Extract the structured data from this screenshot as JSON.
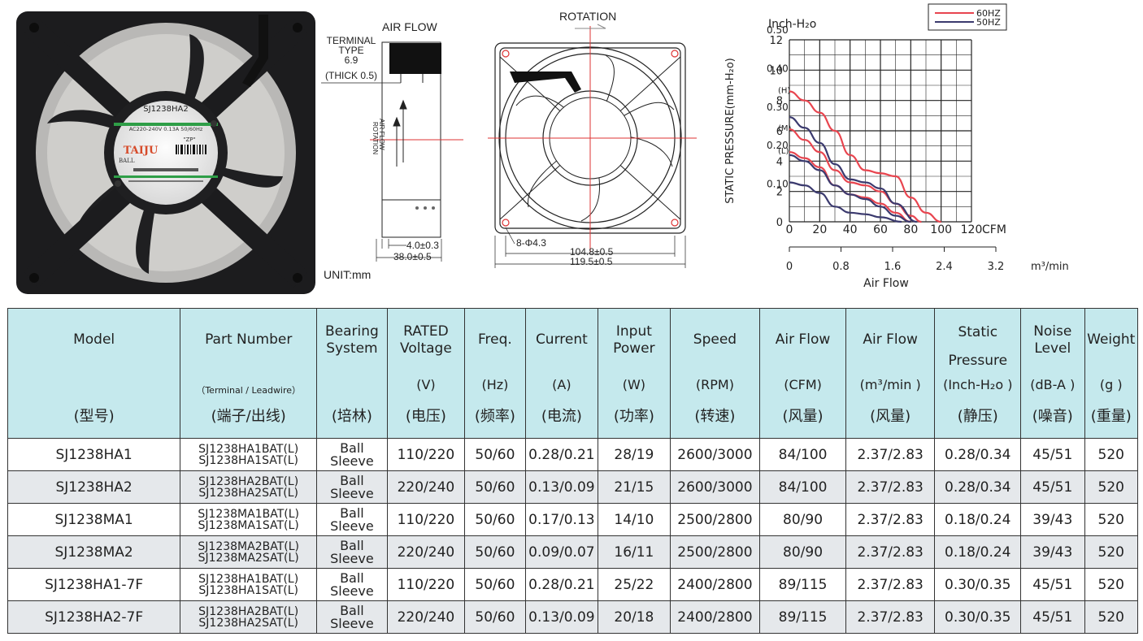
{
  "drawing": {
    "side": {
      "air_flow": "AIR FLOW",
      "terminal_type": "TERMINAL\nTYPE\n6.9",
      "terminal_1": "TERMINAL",
      "terminal_2": "TYPE",
      "terminal_3": "6.9",
      "thick": "(THICK 0.5)",
      "arrow_air": "AIR FLOW",
      "arrow_rot": "ROTATION",
      "dim_small": "4.0±0.3",
      "dim_depth": "38.0±0.5",
      "unit": "UNIT:mm"
    },
    "front": {
      "rotation": "ROTATION",
      "holes": "8-Φ4.3",
      "dim_inner": "104.8±0.5",
      "dim_outer": "119.5±0.5"
    }
  },
  "chart_data": {
    "type": "line",
    "legend": [
      "60HZ",
      "50HZ"
    ],
    "colors": {
      "60HZ": "#e8454f",
      "50HZ": "#3b3a6e"
    },
    "ylabel": "STATIC PRESSURE(mm-H₂o)",
    "y_unit_top": "Inch-H₂o",
    "y_ticks_mm": [
      "0",
      "2",
      "4",
      "6",
      "8",
      "10",
      "12"
    ],
    "y_ticks_inch": [
      "0.10",
      "0.20",
      "0.30",
      "0.40",
      "0.50"
    ],
    "curve_tags": [
      "(H)",
      "(M)",
      "(L)"
    ],
    "x_ticks_cfm": [
      "0",
      "20",
      "40",
      "60",
      "80",
      "100",
      "120"
    ],
    "x_unit_cfm": "CFM",
    "x_ticks_m3": [
      "0",
      "0.8",
      "1.6",
      "2.4",
      "3.2"
    ],
    "x_unit_m3": "m³/min",
    "xlabel": "Air Flow",
    "xlim": [
      0,
      120
    ],
    "ylim": [
      0,
      12
    ],
    "series": [
      {
        "name": "60HZ",
        "x": [
          0,
          10,
          20,
          30,
          40,
          50,
          60,
          70,
          80,
          90,
          100
        ],
        "y": [
          8.6,
          8.0,
          7.2,
          6.0,
          4.4,
          3.4,
          3.2,
          3.0,
          1.6,
          0.6,
          0
        ]
      },
      {
        "name": "60HZ",
        "x": [
          0,
          10,
          20,
          30,
          40,
          50,
          60,
          70,
          80,
          87
        ],
        "y": [
          6.1,
          5.4,
          4.6,
          3.4,
          2.6,
          2.4,
          2.0,
          1.2,
          0.4,
          0
        ]
      },
      {
        "name": "60HZ",
        "x": [
          0,
          10,
          20,
          30,
          40,
          50,
          60,
          70,
          80
        ],
        "y": [
          4.6,
          4.2,
          3.6,
          2.4,
          1.8,
          1.6,
          1.2,
          0.6,
          0
        ]
      },
      {
        "name": "50HZ",
        "x": [
          0,
          10,
          20,
          30,
          40,
          50,
          60,
          70,
          84
        ],
        "y": [
          6.9,
          6.2,
          5.2,
          3.8,
          2.8,
          2.6,
          2.2,
          1.2,
          0
        ]
      },
      {
        "name": "50HZ",
        "x": [
          0,
          10,
          20,
          30,
          40,
          50,
          60,
          70,
          80
        ],
        "y": [
          4.4,
          4.0,
          3.4,
          2.4,
          1.8,
          1.5,
          1.0,
          0.4,
          0
        ]
      },
      {
        "name": "50HZ",
        "x": [
          0,
          10,
          20,
          30,
          40,
          50,
          60,
          74
        ],
        "y": [
          2.6,
          2.4,
          1.9,
          1.0,
          0.6,
          0.5,
          0.3,
          0
        ]
      }
    ]
  },
  "photo": {
    "model": "SJ1238HA2",
    "rating": "AC220-240V 0.13A 50/60Hz",
    "brand": "TAIJU",
    "zp": "\"ZP\"",
    "ball": "BALL"
  },
  "table": {
    "headers": [
      {
        "main": "Model",
        "unit": "",
        "cn": "(型号)"
      },
      {
        "main": "Part Number",
        "unit": "（Terminal / Leadwire）",
        "cn": "(端子/出线)"
      },
      {
        "main": "Bearing\nSystem",
        "unit": "",
        "cn": "(培林)"
      },
      {
        "main": "RATED\nVoltage",
        "unit": "(V)",
        "cn": "(电压)"
      },
      {
        "main": "Freq.",
        "unit": "(Hz)",
        "cn": "(频率)"
      },
      {
        "main": "Current",
        "unit": "(A)",
        "cn": "(电流)"
      },
      {
        "main": "Input\nPower",
        "unit": "(W)",
        "cn": "(功率)"
      },
      {
        "main": "Speed",
        "unit": "(RPM)",
        "cn": "(转速)"
      },
      {
        "main": "Air Flow",
        "unit": "(CFM)",
        "cn": "(风量)"
      },
      {
        "main": "Air Flow",
        "unit": "(m³/min )",
        "cn": "(风量)"
      },
      {
        "main": "Static\nPressure",
        "unit": "(Inch-H₂o )",
        "cn": "(静压)"
      },
      {
        "main": "Noise\nLevel",
        "unit": "(dB-A )",
        "cn": "(噪音)"
      },
      {
        "main": "Weight",
        "unit": "(g )",
        "cn": "(重量)"
      }
    ],
    "rows": [
      {
        "model": "SJ1238HA1",
        "pn1": "SJ1238HA1BAT(L)",
        "pn2": "SJ1238HA1SAT(L)",
        "bear1": "Ball",
        "bear2": "Sleeve",
        "voltage": "110/220",
        "freq": "50/60",
        "current": "0.28/0.21",
        "power": "28/19",
        "speed": "2600/3000",
        "cfm": "84/100",
        "m3": "2.37/2.83",
        "pressure": "0.28/0.34",
        "noise": "45/51",
        "weight": "520"
      },
      {
        "model": "SJ1238HA2",
        "pn1": "SJ1238HA2BAT(L)",
        "pn2": "SJ1238HA2SAT(L)",
        "bear1": "Ball",
        "bear2": "Sleeve",
        "voltage": "220/240",
        "freq": "50/60",
        "current": "0.13/0.09",
        "power": "21/15",
        "speed": "2600/3000",
        "cfm": "84/100",
        "m3": "2.37/2.83",
        "pressure": "0.28/0.34",
        "noise": "45/51",
        "weight": "520"
      },
      {
        "model": "SJ1238MA1",
        "pn1": "SJ1238MA1BAT(L)",
        "pn2": "SJ1238MA1SAT(L)",
        "bear1": "Ball",
        "bear2": "Sleeve",
        "voltage": "110/220",
        "freq": "50/60",
        "current": "0.17/0.13",
        "power": "14/10",
        "speed": "2500/2800",
        "cfm": "80/90",
        "m3": "2.37/2.83",
        "pressure": "0.18/0.24",
        "noise": "39/43",
        "weight": "520"
      },
      {
        "model": "SJ1238MA2",
        "pn1": "SJ1238MA2BAT(L)",
        "pn2": "SJ1238MA2SAT(L)",
        "bear1": "Ball",
        "bear2": "Sleeve",
        "voltage": "220/240",
        "freq": "50/60",
        "current": "0.09/0.07",
        "power": "16/11",
        "speed": "2500/2800",
        "cfm": "80/90",
        "m3": "2.37/2.83",
        "pressure": "0.18/0.24",
        "noise": "39/43",
        "weight": "520"
      },
      {
        "model": "SJ1238HA1-7F",
        "pn1": "SJ1238HA1BAT(L)",
        "pn2": "SJ1238HA1SAT(L)",
        "bear1": "Ball",
        "bear2": "Sleeve",
        "voltage": "110/220",
        "freq": "50/60",
        "current": "0.28/0.21",
        "power": "25/22",
        "speed": "2400/2800",
        "cfm": "89/115",
        "m3": "2.37/2.83",
        "pressure": "0.30/0.35",
        "noise": "45/51",
        "weight": "520"
      },
      {
        "model": "SJ1238HA2-7F",
        "pn1": "SJ1238HA2BAT(L)",
        "pn2": "SJ1238HA2SAT(L)",
        "bear1": "Ball",
        "bear2": "Sleeve",
        "voltage": "220/240",
        "freq": "50/60",
        "current": "0.13/0.09",
        "power": "20/18",
        "speed": "2400/2800",
        "cfm": "89/115",
        "m3": "2.37/2.83",
        "pressure": "0.30/0.35",
        "noise": "45/51",
        "weight": "520"
      }
    ]
  }
}
